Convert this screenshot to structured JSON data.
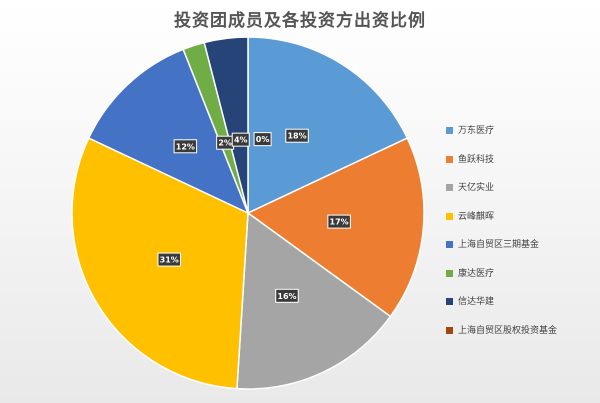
{
  "chart_data": {
    "type": "pie",
    "title": "投资团成员及各投资方出资比例",
    "categories": [
      "万东医疗",
      "鱼跃科技",
      "天亿实业",
      "云峰麒晖",
      "上海自贸区三期基金",
      "康达医疗",
      "信达华建",
      "上海自贸区股权投资基金"
    ],
    "values": [
      18,
      17,
      16,
      31,
      12,
      2,
      4,
      0
    ],
    "data_labels": [
      "18%",
      "17%",
      "16%",
      "31%",
      "12%",
      "2%",
      "4%",
      "0%"
    ],
    "colors": [
      "#5b9bd5",
      "#ed7d31",
      "#a5a5a5",
      "#ffc000",
      "#4472c4",
      "#70ad47",
      "#264478",
      "#9e480e"
    ],
    "legend_position": "right"
  }
}
